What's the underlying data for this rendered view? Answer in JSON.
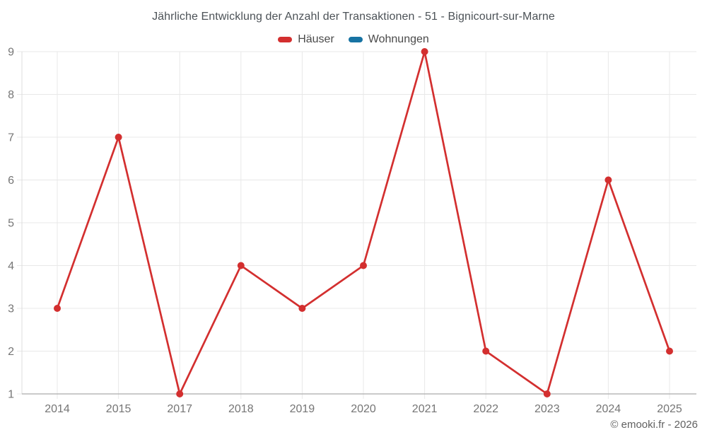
{
  "chart": {
    "title": "Jährliche Entwicklung der Anzahl der Transaktionen - 51 - Bignicourt-sur-Marne",
    "legend": [
      {
        "label": "Häuser",
        "color": "#d32f2f"
      },
      {
        "label": "Wohnungen",
        "color": "#1773a3"
      }
    ],
    "copyright": "© emooki.fr - 2026",
    "colors": {
      "grid": "#e8e8e8",
      "axis_x": "#ababab",
      "axis_y": "#dcdcdc",
      "tick_label": "#757575",
      "title_text": "#4c5257",
      "copyright_text": "#616161"
    }
  },
  "chart_data": {
    "type": "line",
    "title": "Jährliche Entwicklung der Anzahl der Transaktionen - 51 - Bignicourt-sur-Marne",
    "categories": [
      "2014",
      "2015",
      "2017",
      "2018",
      "2019",
      "2020",
      "2021",
      "2022",
      "2023",
      "2024",
      "2025"
    ],
    "series": [
      {
        "name": "Häuser",
        "color": "#d32f2f",
        "values": [
          3,
          7,
          1,
          4,
          3,
          4,
          9,
          2,
          1,
          6,
          2
        ]
      },
      {
        "name": "Wohnungen",
        "color": "#1773a3",
        "values": []
      }
    ],
    "xlabel": "",
    "ylabel": "",
    "ylim": [
      1,
      9
    ],
    "yticks": [
      1,
      2,
      3,
      4,
      5,
      6,
      7,
      8,
      9
    ],
    "grid": true,
    "legend_position": "top",
    "marker": "circle"
  }
}
